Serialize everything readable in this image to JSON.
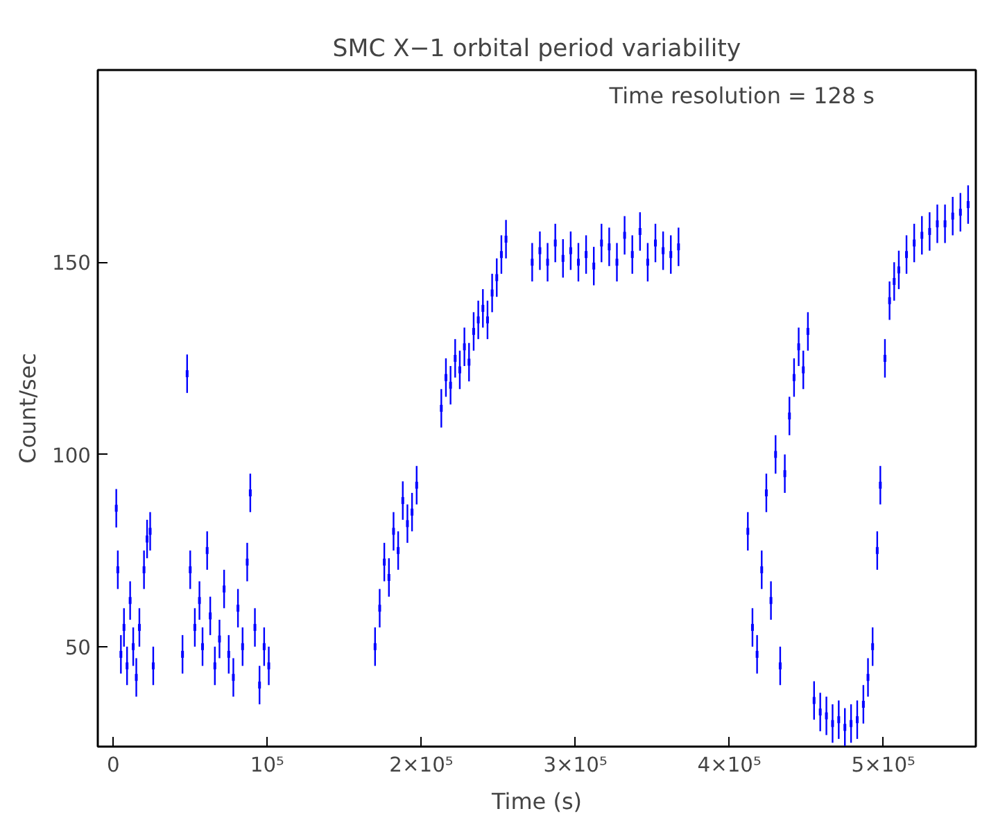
{
  "chart_data": {
    "type": "scatter",
    "title": "SMC X−1 orbital period variability",
    "xlabel": "Time (s)",
    "ylabel": "Count/sec",
    "annotations": [
      "Time resolution = 128 s"
    ],
    "grid": false,
    "xlim": [
      -10000,
      560000
    ],
    "ylim": [
      24,
      200
    ],
    "xticks": [
      0,
      {
        "value": 100000,
        "label": "10⁵"
      },
      {
        "value": 200000,
        "label": "2×10⁵"
      },
      {
        "value": 300000,
        "label": "3×10⁵"
      },
      {
        "value": 400000,
        "label": "4×10⁵"
      },
      {
        "value": 500000,
        "label": "5×10⁵"
      }
    ],
    "yticks": [
      50,
      100,
      150
    ],
    "series": [
      {
        "color": "#0000ff",
        "x": [
          2000,
          3000,
          5000,
          7000,
          9000,
          11000,
          13000,
          15000,
          17000,
          20000,
          22000,
          24000,
          26000,
          45000,
          48000,
          50000,
          53000,
          56000,
          58000,
          61000,
          63000,
          66000,
          69000,
          72000,
          75000,
          78000,
          81000,
          84000,
          87000,
          89000,
          92000,
          95000,
          98000,
          101000,
          170000,
          173000,
          176000,
          179000,
          182000,
          185000,
          188000,
          191000,
          194000,
          197000,
          213000,
          216000,
          219000,
          222000,
          225000,
          228000,
          231000,
          234000,
          237000,
          240000,
          243000,
          246000,
          249000,
          252000,
          255000,
          272000,
          277000,
          282000,
          287000,
          292000,
          297000,
          302000,
          307000,
          312000,
          317000,
          322000,
          327000,
          332000,
          337000,
          342000,
          347000,
          352000,
          357000,
          362000,
          367000,
          412000,
          415000,
          418000,
          421000,
          424000,
          427000,
          430000,
          433000,
          436000,
          439000,
          442000,
          445000,
          448000,
          451000,
          455000,
          459000,
          463000,
          467000,
          471000,
          475000,
          479000,
          483000,
          487000,
          490000,
          493000,
          496000,
          498000,
          501000,
          504000,
          507000,
          510000,
          515000,
          520000,
          525000,
          530000,
          535000,
          540000,
          545000,
          550000,
          555000
        ],
        "values": [
          86,
          70,
          48,
          55,
          45,
          62,
          50,
          42,
          55,
          70,
          78,
          80,
          45,
          48,
          121,
          70,
          55,
          62,
          50,
          75,
          58,
          45,
          52,
          65,
          48,
          42,
          60,
          50,
          72,
          90,
          55,
          40,
          50,
          45,
          50,
          60,
          72,
          68,
          80,
          75,
          88,
          82,
          85,
          92,
          112,
          120,
          118,
          125,
          122,
          128,
          124,
          132,
          135,
          138,
          135,
          142,
          146,
          152,
          156,
          150,
          153,
          150,
          155,
          151,
          153,
          150,
          152,
          149,
          155,
          154,
          150,
          157,
          152,
          158,
          150,
          155,
          153,
          152,
          154,
          80,
          55,
          48,
          70,
          90,
          62,
          100,
          45,
          95,
          110,
          120,
          128,
          122,
          132,
          36,
          33,
          32,
          30,
          31,
          29,
          30,
          31,
          35,
          42,
          50,
          75,
          92,
          125,
          140,
          145,
          148,
          152,
          155,
          157,
          158,
          160,
          160,
          162,
          163,
          165
        ],
        "errors": [
          5,
          5,
          5,
          5,
          5,
          5,
          5,
          5,
          5,
          5,
          5,
          5,
          5,
          5,
          5,
          5,
          5,
          5,
          5,
          5,
          5,
          5,
          5,
          5,
          5,
          5,
          5,
          5,
          5,
          5,
          5,
          5,
          5,
          5,
          5,
          5,
          5,
          5,
          5,
          5,
          5,
          5,
          5,
          5,
          5,
          5,
          5,
          5,
          5,
          5,
          5,
          5,
          5,
          5,
          5,
          5,
          5,
          5,
          5,
          5,
          5,
          5,
          5,
          5,
          5,
          5,
          5,
          5,
          5,
          5,
          5,
          5,
          5,
          5,
          5,
          5,
          5,
          5,
          5,
          5,
          5,
          5,
          5,
          5,
          5,
          5,
          5,
          5,
          5,
          5,
          5,
          5,
          5,
          5,
          5,
          5,
          5,
          5,
          5,
          5,
          5,
          5,
          5,
          5,
          5,
          5,
          5,
          5,
          5,
          5,
          5,
          5,
          5,
          5,
          5,
          5,
          5,
          5,
          5
        ]
      }
    ]
  }
}
